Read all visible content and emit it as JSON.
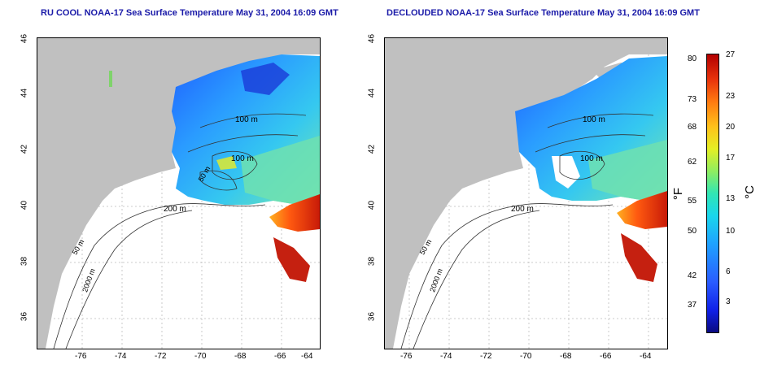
{
  "titles": {
    "left": "RU COOL NOAA-17 Sea Surface Temperature May 31, 2004 16:09 GMT",
    "right": "DECLOUDED NOAA-17 Sea Surface Temperature May 31, 2004 16:09 GMT"
  },
  "axes": {
    "x_ticks": [
      "-76",
      "-74",
      "-72",
      "-70",
      "-68",
      "-66",
      "-64"
    ],
    "y_ticks": [
      "36",
      "38",
      "40",
      "42",
      "44",
      "46"
    ]
  },
  "contours": {
    "c100_a": "100 m",
    "c100_b": "100 m",
    "c200": "200 m",
    "c50_a": "50 m",
    "c50_b": "50 m",
    "c2000": "2000 m"
  },
  "colorbar": {
    "fahrenheit": [
      "80",
      "73",
      "68",
      "62",
      "55",
      "50",
      "42",
      "37"
    ],
    "celsius": [
      "27",
      "23",
      "20",
      "17",
      "13",
      "10",
      "6",
      "3"
    ],
    "f_unit": "°F",
    "c_unit": "°C"
  },
  "colors": {
    "land": "#c0c0c0",
    "title": "#1a1aa8",
    "warm": "#d42a0c",
    "cool": "#2c8fff"
  }
}
